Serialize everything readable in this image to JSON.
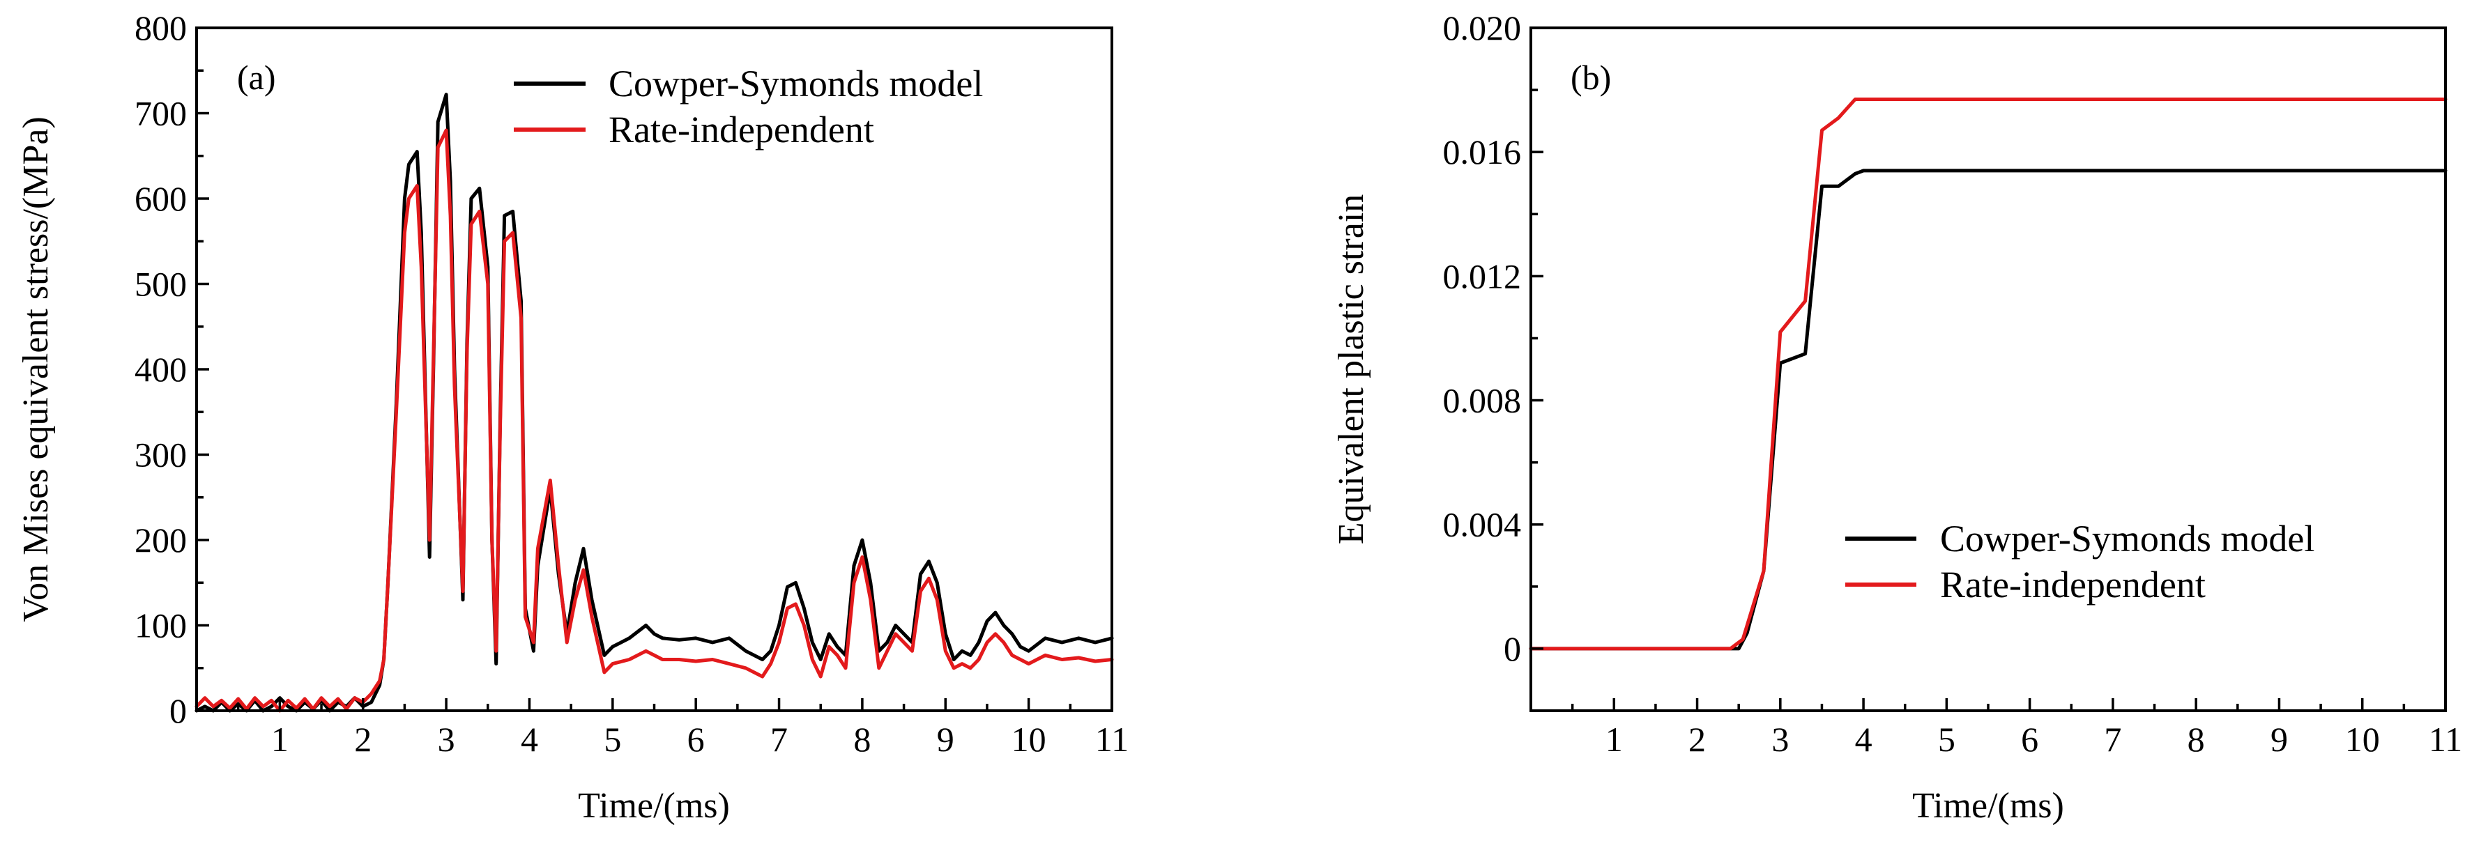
{
  "chart_data": [
    {
      "type": "line",
      "panel_label": "(a)",
      "xlabel": "Time/(ms)",
      "ylabel": "Von Mises equivalent stress/(MPa)",
      "xlim": [
        0,
        11
      ],
      "ylim": [
        0,
        800
      ],
      "xticks": [
        1,
        2,
        3,
        4,
        5,
        6,
        7,
        8,
        9,
        10,
        11
      ],
      "xtick_labels": [
        "1",
        "2",
        "3",
        "4",
        "5",
        "6",
        "7",
        "8",
        "9",
        "10",
        "11"
      ],
      "yticks": [
        0,
        100,
        200,
        300,
        400,
        500,
        600,
        700,
        800
      ],
      "ytick_labels": [
        "0",
        "100",
        "200",
        "300",
        "400",
        "500",
        "600",
        "700",
        "800"
      ],
      "grid": false,
      "legend_position": "top-right",
      "series": [
        {
          "name": "Cowper-Symonds model",
          "color": "#000000",
          "x": [
            0,
            0.1,
            0.2,
            0.3,
            0.4,
            0.5,
            0.6,
            0.7,
            0.8,
            0.9,
            1.0,
            1.1,
            1.2,
            1.3,
            1.4,
            1.5,
            1.6,
            1.7,
            1.8,
            1.9,
            2.0,
            2.1,
            2.2,
            2.25,
            2.3,
            2.4,
            2.5,
            2.55,
            2.65,
            2.7,
            2.8,
            2.85,
            2.9,
            3.0,
            3.05,
            3.1,
            3.2,
            3.25,
            3.3,
            3.4,
            3.5,
            3.55,
            3.6,
            3.65,
            3.7,
            3.8,
            3.9,
            3.95,
            4.05,
            4.1,
            4.25,
            4.35,
            4.45,
            4.55,
            4.65,
            4.75,
            4.9,
            5.0,
            5.2,
            5.4,
            5.5,
            5.6,
            5.8,
            6.0,
            6.2,
            6.4,
            6.6,
            6.8,
            6.9,
            7.0,
            7.1,
            7.2,
            7.3,
            7.4,
            7.5,
            7.6,
            7.7,
            7.8,
            7.9,
            8.0,
            8.1,
            8.2,
            8.3,
            8.4,
            8.5,
            8.6,
            8.7,
            8.8,
            8.9,
            9.0,
            9.1,
            9.2,
            9.3,
            9.4,
            9.5,
            9.6,
            9.7,
            9.8,
            9.9,
            10.0,
            10.2,
            10.4,
            10.6,
            10.8,
            11.0
          ],
          "y": [
            0,
            5,
            0,
            10,
            0,
            8,
            0,
            12,
            0,
            5,
            15,
            5,
            0,
            10,
            2,
            12,
            0,
            10,
            5,
            15,
            5,
            10,
            30,
            60,
            150,
            360,
            600,
            640,
            655,
            560,
            180,
            420,
            690,
            722,
            620,
            400,
            130,
            430,
            600,
            612,
            520,
            200,
            55,
            350,
            580,
            585,
            480,
            120,
            70,
            170,
            260,
            160,
            90,
            150,
            190,
            130,
            65,
            75,
            85,
            100,
            90,
            85,
            83,
            85,
            80,
            85,
            70,
            60,
            70,
            100,
            145,
            150,
            120,
            80,
            60,
            90,
            75,
            65,
            170,
            200,
            150,
            70,
            80,
            100,
            90,
            80,
            160,
            175,
            150,
            90,
            60,
            70,
            65,
            80,
            105,
            115,
            100,
            90,
            75,
            70,
            85,
            80,
            85,
            80,
            85
          ]
        },
        {
          "name": "Rate-independent",
          "color": "#e31a1c",
          "x": [
            0,
            0.1,
            0.2,
            0.3,
            0.4,
            0.5,
            0.6,
            0.7,
            0.8,
            0.9,
            1.0,
            1.1,
            1.2,
            1.3,
            1.4,
            1.5,
            1.6,
            1.7,
            1.8,
            1.9,
            2.0,
            2.1,
            2.2,
            2.25,
            2.3,
            2.4,
            2.5,
            2.55,
            2.65,
            2.7,
            2.8,
            2.85,
            2.9,
            3.0,
            3.05,
            3.1,
            3.2,
            3.25,
            3.3,
            3.4,
            3.5,
            3.55,
            3.6,
            3.65,
            3.7,
            3.8,
            3.9,
            3.95,
            4.05,
            4.1,
            4.25,
            4.35,
            4.45,
            4.55,
            4.65,
            4.75,
            4.9,
            5.0,
            5.2,
            5.4,
            5.5,
            5.6,
            5.8,
            6.0,
            6.2,
            6.4,
            6.6,
            6.8,
            6.9,
            7.0,
            7.1,
            7.2,
            7.3,
            7.4,
            7.5,
            7.6,
            7.7,
            7.8,
            7.9,
            8.0,
            8.1,
            8.2,
            8.3,
            8.4,
            8.5,
            8.6,
            8.7,
            8.8,
            8.9,
            9.0,
            9.1,
            9.2,
            9.3,
            9.4,
            9.5,
            9.6,
            9.7,
            9.8,
            9.9,
            10.0,
            10.2,
            10.4,
            10.6,
            10.8,
            11.0
          ],
          "y": [
            5,
            15,
            5,
            12,
            3,
            14,
            2,
            15,
            5,
            12,
            0,
            12,
            3,
            14,
            2,
            15,
            5,
            14,
            2,
            15,
            10,
            20,
            35,
            60,
            150,
            350,
            560,
            600,
            615,
            520,
            200,
            430,
            660,
            680,
            580,
            380,
            140,
            420,
            570,
            585,
            500,
            200,
            70,
            340,
            550,
            560,
            460,
            110,
            80,
            190,
            270,
            170,
            80,
            130,
            165,
            110,
            45,
            55,
            60,
            70,
            65,
            60,
            60,
            58,
            60,
            55,
            50,
            40,
            55,
            80,
            120,
            125,
            100,
            60,
            40,
            75,
            65,
            50,
            150,
            180,
            130,
            50,
            70,
            90,
            80,
            70,
            140,
            155,
            130,
            70,
            50,
            55,
            50,
            60,
            80,
            90,
            80,
            65,
            60,
            55,
            65,
            60,
            62,
            58,
            60
          ]
        }
      ]
    },
    {
      "type": "line",
      "panel_label": "(b)",
      "xlabel": "Time/(ms)",
      "ylabel": "Equivalent plastic strain",
      "xlim": [
        0,
        11
      ],
      "ylim": [
        -0.002,
        0.02
      ],
      "xticks": [
        1,
        2,
        3,
        4,
        5,
        6,
        7,
        8,
        9,
        10,
        11
      ],
      "xtick_labels": [
        "1",
        "2",
        "3",
        "4",
        "5",
        "6",
        "7",
        "8",
        "9",
        "10",
        "11"
      ],
      "yticks": [
        0,
        0.004,
        0.008,
        0.012,
        0.016,
        0.02
      ],
      "ytick_labels": [
        "0",
        "0.004",
        "0.008",
        "0.012",
        "0.016",
        "0.020"
      ],
      "grid": false,
      "legend_position": "bottom-right",
      "series": [
        {
          "name": "Cowper-Symonds model",
          "color": "#000000",
          "x": [
            0,
            2.5,
            2.6,
            2.8,
            3.0,
            3.3,
            3.5,
            3.7,
            3.9,
            4.0,
            11.0
          ],
          "y": [
            0,
            0,
            0.0005,
            0.0025,
            0.0092,
            0.0095,
            0.0149,
            0.0149,
            0.0153,
            0.0154,
            0.0154
          ]
        },
        {
          "name": "Rate-independent",
          "color": "#e31a1c",
          "x": [
            0,
            2.4,
            2.55,
            2.8,
            3.0,
            3.3,
            3.5,
            3.7,
            3.9,
            4.0,
            11.0
          ],
          "y": [
            0,
            0,
            0.0003,
            0.0025,
            0.0102,
            0.0112,
            0.0167,
            0.0171,
            0.0177,
            0.0177,
            0.0177
          ]
        }
      ]
    }
  ]
}
